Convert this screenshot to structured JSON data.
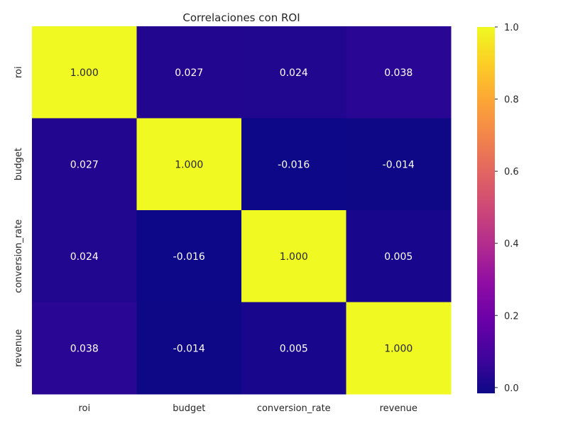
{
  "chart_data": {
    "type": "heatmap",
    "title": "Correlaciones con ROI",
    "xlabel": "",
    "ylabel": "",
    "x_categories": [
      "roi",
      "budget",
      "conversion_rate",
      "revenue"
    ],
    "y_categories": [
      "roi",
      "budget",
      "conversion_rate",
      "revenue"
    ],
    "values": [
      [
        1.0,
        0.027,
        0.024,
        0.038
      ],
      [
        0.027,
        1.0,
        -0.016,
        -0.014
      ],
      [
        0.024,
        -0.016,
        1.0,
        0.005
      ],
      [
        0.038,
        -0.014,
        0.005,
        1.0
      ]
    ],
    "value_format": "0.000",
    "colormap": "plasma",
    "colorbar": {
      "range": [
        -0.016,
        1.0
      ],
      "ticks": [
        0.0,
        0.2,
        0.4,
        0.6,
        0.8,
        1.0
      ],
      "tick_labels": [
        "0.0",
        "0.2",
        "0.4",
        "0.6",
        "0.8",
        "1.0"
      ]
    },
    "colors": {
      "low": "#0d0887",
      "high": "#f0f921",
      "text_dark_bg": "#ffffff",
      "text_light_bg": "#262626"
    }
  }
}
